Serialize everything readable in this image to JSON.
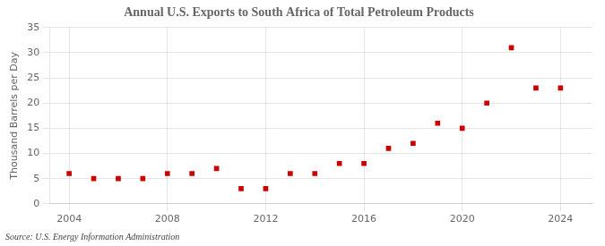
{
  "chart_data": {
    "type": "scatter",
    "title": "Annual U.S. Exports to South Africa of Total Petroleum Products",
    "ylabel": "Thousand Barrels per Day",
    "annotations": [
      "Source: U.S. Energy Information Administration"
    ],
    "x": [
      2004,
      2005,
      2006,
      2007,
      2008,
      2009,
      2010,
      2011,
      2012,
      2013,
      2014,
      2015,
      2016,
      2017,
      2018,
      2019,
      2020,
      2021,
      2022,
      2023,
      2024
    ],
    "values": [
      6,
      5,
      5,
      5,
      6,
      6,
      7,
      3,
      3,
      6,
      6,
      8,
      8,
      11,
      12,
      16,
      15,
      20,
      31,
      23,
      23
    ],
    "color": "#cc0000",
    "marker": "square",
    "xlim": [
      2003.2,
      2025.3
    ],
    "xticks": [
      2004,
      2008,
      2012,
      2016,
      2020,
      2024
    ],
    "ylim": [
      0,
      35
    ],
    "yticks": [
      0,
      5,
      10,
      15,
      20,
      25,
      30,
      35
    ],
    "grid": true
  }
}
